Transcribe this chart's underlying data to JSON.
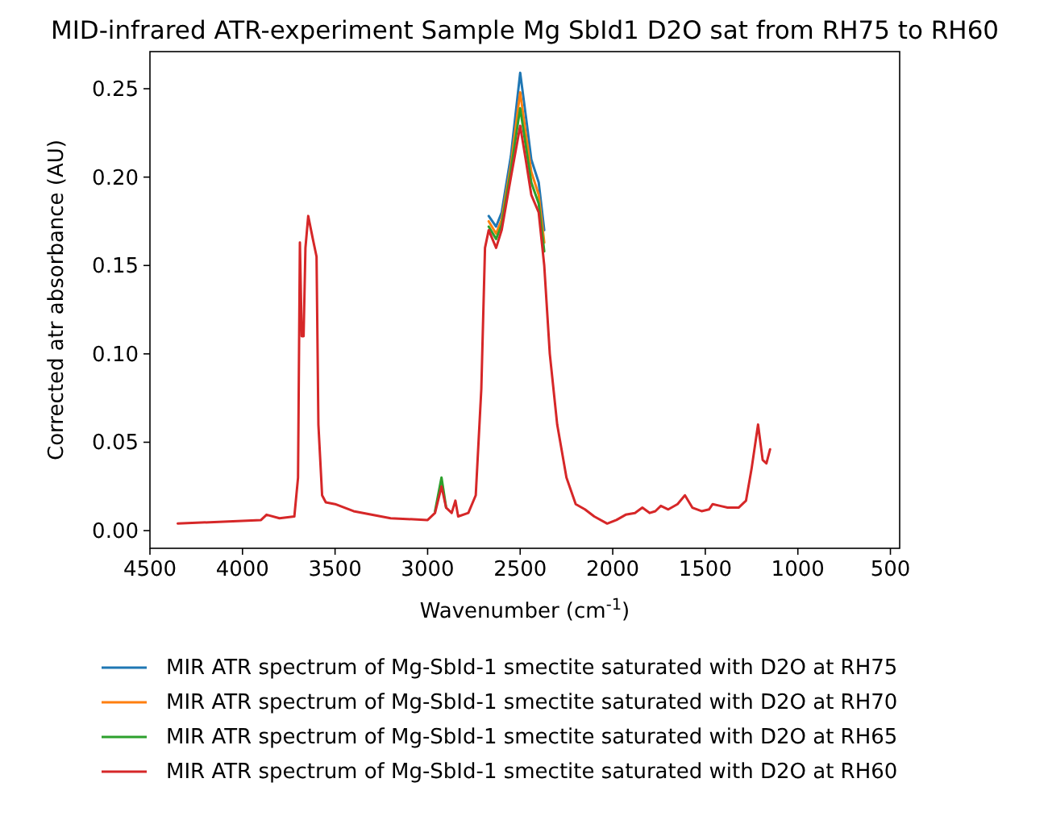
{
  "chart_data": {
    "type": "line",
    "title": "MID-infrared ATR-experiment Sample Mg SbId1 D2O sat from RH75 to RH60",
    "xlabel": "Wavenumber (cm$^{-1}$)",
    "ylabel": "Corrected atr absorbance (AU)",
    "x": [
      4350,
      3900,
      3870,
      3800,
      3720,
      3700,
      3690,
      3680,
      3670,
      3660,
      3645,
      3620,
      3600,
      3590,
      3570,
      3550,
      3500,
      3400,
      3200,
      3000,
      2960,
      2925,
      2900,
      2870,
      2850,
      2835,
      2780,
      2740,
      2710,
      2690,
      2670,
      2630,
      2600,
      2550,
      2500,
      2470,
      2440,
      2400,
      2370,
      2340,
      2300,
      2250,
      2200,
      2150,
      2100,
      2030,
      1980,
      1930,
      1880,
      1840,
      1800,
      1770,
      1740,
      1700,
      1650,
      1610,
      1570,
      1520,
      1480,
      1460,
      1420,
      1380,
      1320,
      1280,
      1250,
      1215,
      1190,
      1170,
      1150
    ],
    "series": [
      {
        "name": "MIR ATR spectrum of Mg-SbId-1 smectite saturated with D2O at RH75",
        "color": "#1f77b4",
        "values": [
          null,
          null,
          null,
          null,
          null,
          null,
          null,
          null,
          null,
          null,
          null,
          null,
          null,
          null,
          null,
          null,
          null,
          null,
          null,
          null,
          null,
          null,
          null,
          null,
          null,
          null,
          null,
          null,
          null,
          null,
          0.178,
          0.172,
          0.18,
          0.212,
          0.259,
          0.235,
          0.21,
          0.197,
          0.17,
          null,
          null,
          null,
          null,
          null,
          null,
          null,
          null,
          null,
          null,
          null,
          null,
          null,
          null,
          null,
          null,
          null,
          null,
          null,
          null,
          null,
          null,
          null,
          null,
          null,
          null,
          null,
          null,
          null,
          null
        ]
      },
      {
        "name": "MIR ATR spectrum of Mg-SbId-1 smectite saturated with D2O at RH70",
        "color": "#ff7f0e",
        "values": [
          null,
          null,
          null,
          null,
          null,
          null,
          null,
          null,
          null,
          null,
          null,
          null,
          null,
          null,
          null,
          null,
          null,
          null,
          null,
          null,
          null,
          null,
          null,
          null,
          null,
          null,
          null,
          null,
          null,
          null,
          0.175,
          0.168,
          0.176,
          0.207,
          0.248,
          0.225,
          0.203,
          0.19,
          0.163,
          null,
          null,
          null,
          null,
          null,
          null,
          null,
          null,
          null,
          null,
          null,
          null,
          null,
          null,
          null,
          null,
          null,
          null,
          null,
          null,
          null,
          null,
          null,
          null,
          null,
          null,
          null,
          null,
          null,
          null
        ]
      },
      {
        "name": "MIR ATR spectrum of Mg-SbId-1 smectite saturated with D2O at RH65",
        "color": "#2ca02c",
        "values": [
          null,
          null,
          null,
          null,
          null,
          null,
          null,
          null,
          null,
          null,
          null,
          null,
          null,
          null,
          null,
          null,
          null,
          null,
          null,
          null,
          0.011,
          0.03,
          0.013,
          null,
          null,
          null,
          null,
          null,
          null,
          null,
          0.172,
          0.165,
          0.173,
          0.204,
          0.239,
          0.218,
          0.197,
          0.185,
          0.158,
          null,
          null,
          null,
          null,
          null,
          null,
          null,
          null,
          null,
          null,
          null,
          null,
          null,
          null,
          null,
          null,
          null,
          null,
          null,
          null,
          null,
          null,
          null,
          null,
          null,
          null,
          null,
          null,
          null,
          null
        ]
      },
      {
        "name": "MIR ATR spectrum of Mg-SbId-1 smectite saturated with D2O at RH60",
        "color": "#d62728",
        "values": [
          0.004,
          0.006,
          0.009,
          0.007,
          0.008,
          0.03,
          0.163,
          0.11,
          0.11,
          0.16,
          0.178,
          0.165,
          0.155,
          0.06,
          0.02,
          0.016,
          0.015,
          0.011,
          0.007,
          0.006,
          0.01,
          0.025,
          0.013,
          0.01,
          0.017,
          0.008,
          0.01,
          0.02,
          0.08,
          0.16,
          0.17,
          0.16,
          0.17,
          0.2,
          0.229,
          0.21,
          0.19,
          0.18,
          0.15,
          0.1,
          0.06,
          0.03,
          0.015,
          0.012,
          0.008,
          0.004,
          0.006,
          0.009,
          0.01,
          0.013,
          0.01,
          0.011,
          0.014,
          0.012,
          0.015,
          0.02,
          0.013,
          0.011,
          0.012,
          0.015,
          0.014,
          0.013,
          0.013,
          0.017,
          0.035,
          0.06,
          0.04,
          0.038,
          0.046
        ]
      }
    ],
    "xlim": [
      4500,
      450
    ],
    "xticks": [
      4500,
      4000,
      3500,
      3000,
      2500,
      2000,
      1500,
      1000,
      500
    ],
    "ylim": [
      -0.01,
      0.271
    ],
    "yticks": [
      {
        "value": 0,
        "label": "0.00"
      },
      {
        "value": 0.05,
        "label": "0.05"
      },
      {
        "value": 0.1,
        "label": "0.10"
      },
      {
        "value": 0.15,
        "label": "0.15"
      },
      {
        "value": 0.2,
        "label": "0.20"
      },
      {
        "value": 0.25,
        "label": "0.25"
      }
    ],
    "grid": false,
    "legend": "bottom"
  }
}
